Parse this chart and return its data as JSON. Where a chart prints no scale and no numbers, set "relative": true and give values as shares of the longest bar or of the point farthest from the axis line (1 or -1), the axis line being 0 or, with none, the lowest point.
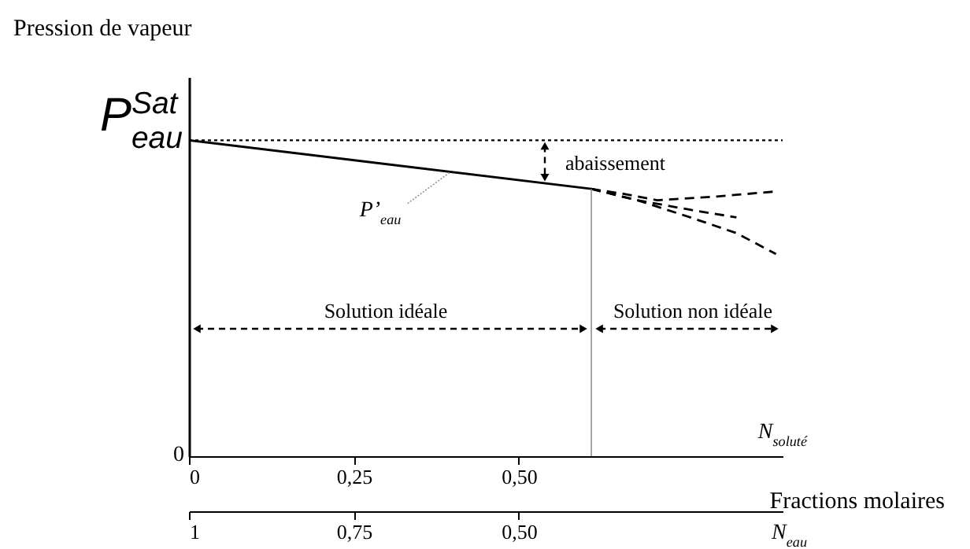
{
  "chart_data": {
    "type": "line",
    "relative": true,
    "ylabel": "Pression de vapeur",
    "xlabel": "N$_{soluté}$",
    "x2label": "N$_{eau}$",
    "xlim": [
      0,
      0.9
    ],
    "xticks": [
      {
        "value": 0,
        "label": "0"
      },
      {
        "value": 0.25,
        "label": "0,25"
      },
      {
        "value": 0.5,
        "label": "0,50"
      }
    ],
    "x2lim": [
      1,
      0.1
    ],
    "x2ticks": [
      {
        "value": 1,
        "label": "1"
      },
      {
        "value": 0.75,
        "label": "0,75"
      },
      {
        "value": 0.5,
        "label": "0,50"
      }
    ],
    "series": [
      {
        "name": "P’$_{eau}$",
        "color": "#000000",
        "line_style": "solid",
        "x": [
          0,
          0.61
        ],
        "values": [
          1,
          0.846
        ]
      },
      {
        "color": "#000000",
        "line_style": "dashed",
        "x": [
          0.61,
          0.66,
          0.71,
          0.8,
          0.89
        ],
        "values": [
          0.846,
          0.83,
          0.81,
          0.822,
          0.838
        ]
      },
      {
        "color": "#000000",
        "line_style": "dashed",
        "x": [
          0.61,
          0.68,
          0.76,
          0.83
        ],
        "values": [
          0.846,
          0.81,
          0.78,
          0.756
        ]
      },
      {
        "color": "#000000",
        "line_style": "dashed",
        "x": [
          0.61,
          0.68,
          0.76,
          0.83,
          0.89
        ],
        "values": [
          0.846,
          0.81,
          0.756,
          0.706,
          0.64
        ]
      }
    ],
    "ref_lines": [
      {
        "axis": "y",
        "value": 1,
        "line_style": "dotted",
        "color": "#000000"
      },
      {
        "axis": "x",
        "value": 0.61,
        "line_style": "solid",
        "color": "#909090"
      }
    ],
    "annotations": [
      "0",
      {
        "text": "P$^{Sat}$$_{eau}$",
        "x": 0,
        "y": 1
      },
      "abaissement",
      "Solution idéale",
      "Solution non idéale",
      "Fractions molaires"
    ]
  }
}
